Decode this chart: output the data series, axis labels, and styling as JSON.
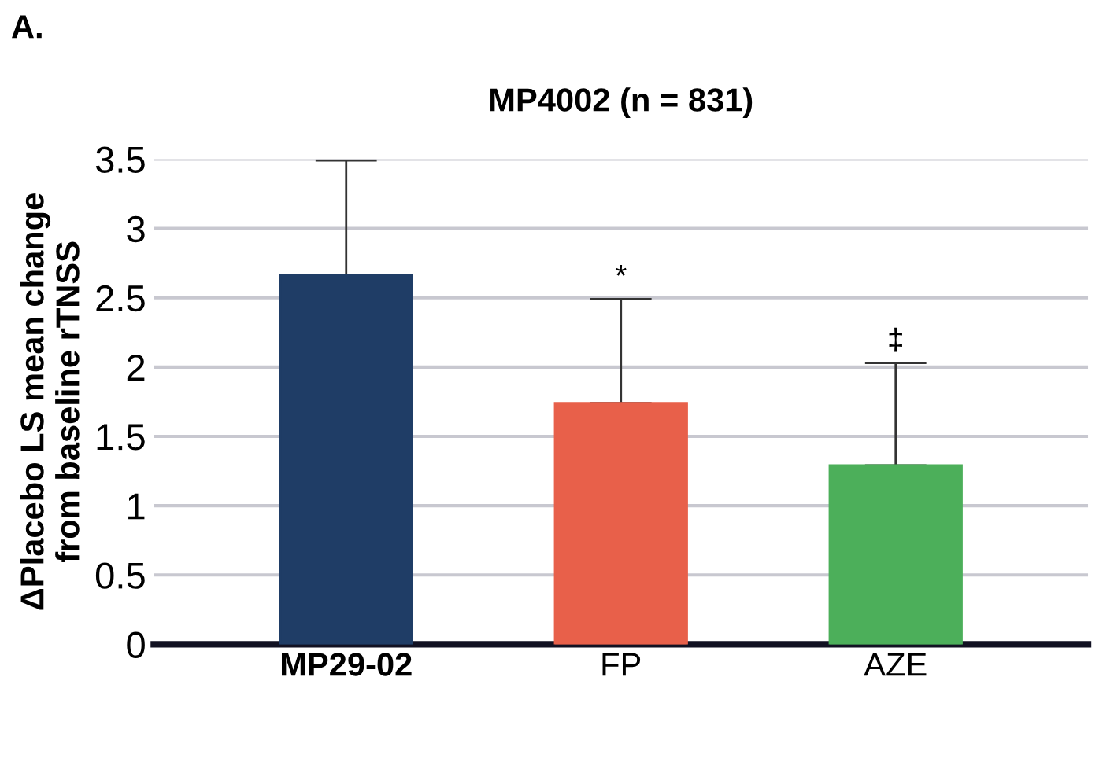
{
  "chart_data": {
    "type": "bar",
    "title": "MP4002 (n = 831)",
    "ylabel": "ΔPlacebo LS mean change\nfrom baseline rTNSS",
    "categories": [
      "MP29-02",
      "FP",
      "AZE"
    ],
    "values": [
      2.66,
      1.74,
      1.29
    ],
    "errors": [
      [
        2.66,
        3.49
      ],
      [
        1.74,
        2.49
      ],
      [
        1.29,
        2.03
      ]
    ],
    "colors": [
      "#1f3d66",
      "#e8604a",
      "#4caf5a"
    ],
    "ylim": [
      0,
      3.5
    ],
    "yticks": [
      0,
      0.5,
      1,
      1.5,
      2,
      2.5,
      3,
      3.5
    ],
    "grid": "y",
    "annotations": [
      "A.",
      "*",
      "‡"
    ]
  }
}
